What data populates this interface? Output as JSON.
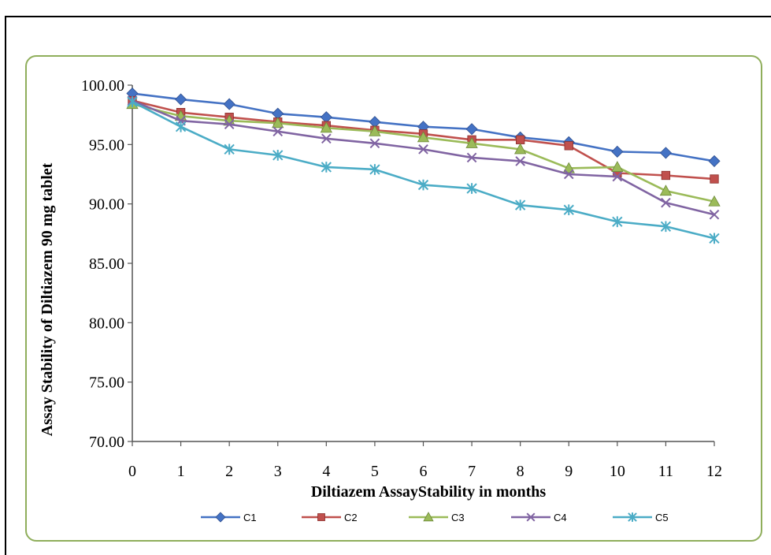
{
  "chart_data": {
    "type": "line",
    "title": "",
    "xlabel": "Diltiazem AssayStability  in months",
    "ylabel": "Assay Stability of Diltiazem 90 mg tablet",
    "x": [
      0,
      1,
      2,
      3,
      4,
      5,
      6,
      7,
      8,
      9,
      10,
      11,
      12
    ],
    "x_tick_labels": [
      "0",
      "1",
      "2",
      "3",
      "4",
      "5",
      "6",
      "7",
      "8",
      "9",
      "10",
      "11",
      "12"
    ],
    "y_tick_labels": [
      "70.00",
      "75.00",
      "80.00",
      "85.00",
      "90.00",
      "95.00",
      "100.00"
    ],
    "y_ticks": [
      70,
      75,
      80,
      85,
      90,
      95,
      100
    ],
    "ylim": [
      70,
      100
    ],
    "xlim": [
      0,
      12
    ],
    "grid": false,
    "legend_position": "bottom",
    "series": [
      {
        "name": "C1",
        "color": "#4472c4",
        "marker": "diamond",
        "values": [
          99.3,
          98.8,
          98.4,
          97.6,
          97.3,
          96.9,
          96.5,
          96.3,
          95.6,
          95.2,
          94.4,
          94.3,
          93.6
        ]
      },
      {
        "name": "C2",
        "color": "#c0504d",
        "marker": "square",
        "values": [
          98.7,
          97.7,
          97.3,
          96.9,
          96.6,
          96.2,
          95.9,
          95.4,
          95.4,
          94.9,
          92.6,
          92.4,
          92.1
        ]
      },
      {
        "name": "C3",
        "color": "#9bbb59",
        "marker": "triangle",
        "values": [
          98.4,
          97.4,
          97.0,
          96.8,
          96.4,
          96.1,
          95.6,
          95.1,
          94.6,
          93.0,
          93.1,
          91.1,
          90.2
        ]
      },
      {
        "name": "C4",
        "color": "#8064a2",
        "marker": "x",
        "values": [
          98.7,
          97.0,
          96.7,
          96.1,
          95.5,
          95.1,
          94.6,
          93.9,
          93.6,
          92.5,
          92.3,
          90.1,
          89.1
        ]
      },
      {
        "name": "C5",
        "color": "#4bacc6",
        "marker": "star",
        "values": [
          98.6,
          96.5,
          94.6,
          94.1,
          93.1,
          92.9,
          91.6,
          91.3,
          89.9,
          89.5,
          88.5,
          88.1,
          87.1
        ]
      }
    ]
  }
}
